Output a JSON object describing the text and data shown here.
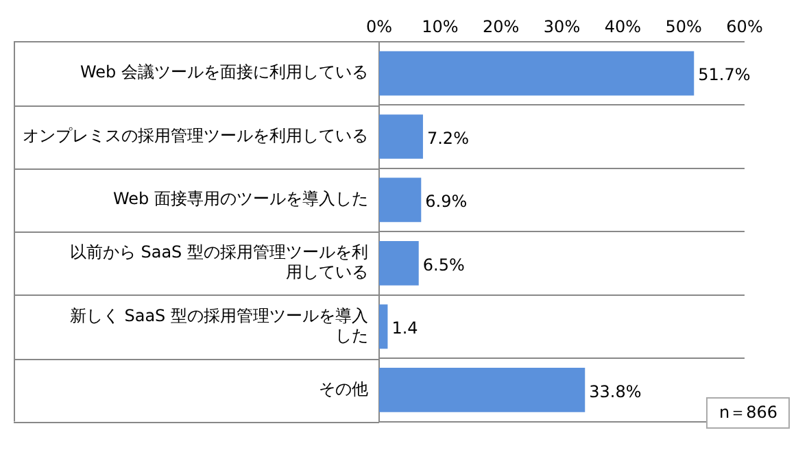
{
  "chart_data": {
    "type": "bar",
    "orientation": "horizontal",
    "categories": [
      "Web 会議ツールを面接に利用している",
      "オンプレミスの採用管理ツールを利用している",
      "Web 面接専用のツールを導入した",
      "以前から SaaS 型の採用管理ツールを利用している",
      "新しく SaaS 型の採用管理ツールを導入した",
      "その他"
    ],
    "values": [
      51.7,
      7.2,
      6.9,
      6.5,
      1.4,
      33.8
    ],
    "value_labels": [
      "51.7%",
      "7.2%",
      "6.9%",
      "6.5%",
      "1.4",
      "33.8%"
    ],
    "color": "#5b91dc",
    "xlim": [
      0,
      60
    ],
    "xticks": [
      {
        "value": 0,
        "label": "0%"
      },
      {
        "value": 10,
        "label": "10%"
      },
      {
        "value": 20,
        "label": "20%"
      },
      {
        "value": 30,
        "label": "30%"
      },
      {
        "value": 40,
        "label": "40%"
      },
      {
        "value": 50,
        "label": "50%"
      },
      {
        "value": 60,
        "label": "60%"
      }
    ],
    "grid": "y",
    "annotations": [
      "n＝866"
    ]
  }
}
